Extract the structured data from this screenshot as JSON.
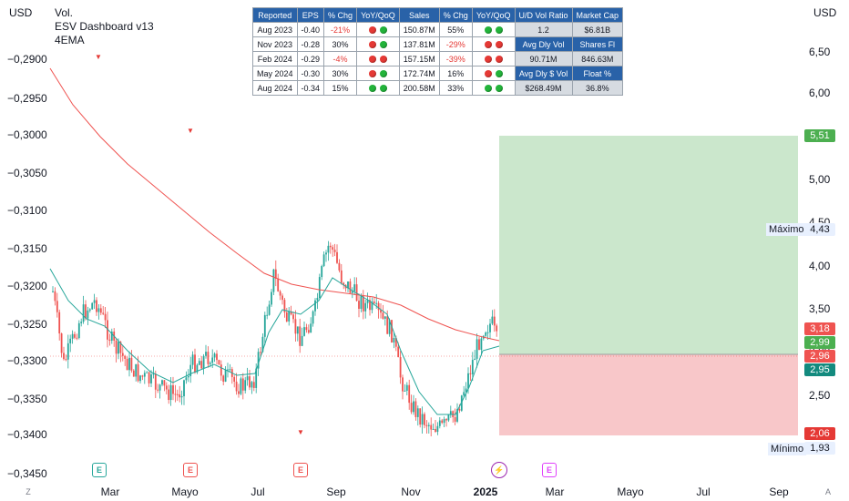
{
  "left_axis": {
    "currency": "USD",
    "ticks": [
      "−0,2900",
      "−0,2950",
      "−0,3000",
      "−0,3050",
      "−0,3100",
      "−0,3150",
      "−0,3200",
      "−0,3250",
      "−0,3300",
      "−0,3350",
      "−0,3400",
      "−0,3450"
    ]
  },
  "right_axis": {
    "currency": "USD",
    "ticks": [
      "6,50",
      "6,00",
      "5,00",
      "4,50",
      "4,00",
      "3,50",
      "3,00",
      "2,50"
    ]
  },
  "legend": {
    "line1": "Vol.",
    "line2": "ESV Dashboard v13",
    "line3": "4EMA"
  },
  "x_axis": {
    "ticks": [
      "Mar",
      "Mayo",
      "Jul",
      "Sep",
      "Nov",
      "2025",
      "Mar",
      "Mayo",
      "Jul",
      "Sep"
    ]
  },
  "price_badges": {
    "target": "5,51",
    "max_value": "4,43",
    "p318": "3,18",
    "p299": "2,99",
    "p296": "2,96",
    "p295": "2,95",
    "stop": "2,06",
    "min_value": "1,93"
  },
  "range_labels": {
    "max_label": "Máximo",
    "min_label": "Mínimo"
  },
  "colors": {
    "up": "#26a69a",
    "down": "#ef5350",
    "ema_slow": "#ef5350",
    "ema_fast": "#26a69a",
    "profit_zone": "#c8e6c9",
    "loss_zone": "#f8c4c6",
    "table_header": "#2962a8"
  },
  "fundamentals_table": {
    "headers": [
      "Reported",
      "EPS",
      "% Chg",
      "YoY/QoQ",
      "Sales",
      "% Chg",
      "YoY/QoQ"
    ],
    "rows": [
      {
        "reported": "Aug 2023",
        "eps": "-0.40",
        "eps_chg": "-21%",
        "eps_neg": true,
        "eps_dots": [
          "red",
          "green"
        ],
        "sales": "150.87M",
        "sales_chg": "55%",
        "sales_neg": false,
        "sales_dots": [
          "green",
          "green"
        ]
      },
      {
        "reported": "Nov 2023",
        "eps": "-0.28",
        "eps_chg": "30%",
        "eps_neg": false,
        "eps_dots": [
          "red",
          "green"
        ],
        "sales": "137.81M",
        "sales_chg": "-29%",
        "sales_neg": true,
        "sales_dots": [
          "red",
          "red"
        ]
      },
      {
        "reported": "Feb 2024",
        "eps": "-0.29",
        "eps_chg": "-4%",
        "eps_neg": true,
        "eps_dots": [
          "red",
          "red"
        ],
        "sales": "157.15M",
        "sales_chg": "-39%",
        "sales_neg": true,
        "sales_dots": [
          "red",
          "red"
        ]
      },
      {
        "reported": "May 2024",
        "eps": "-0.30",
        "eps_chg": "30%",
        "eps_neg": false,
        "eps_dots": [
          "red",
          "green"
        ],
        "sales": "172.74M",
        "sales_chg": "16%",
        "sales_neg": false,
        "sales_dots": [
          "red",
          "green"
        ]
      },
      {
        "reported": "Aug 2024",
        "eps": "-0.34",
        "eps_chg": "15%",
        "eps_neg": false,
        "eps_dots": [
          "green",
          "green"
        ],
        "sales": "200.58M",
        "sales_chg": "33%",
        "sales_neg": false,
        "sales_dots": [
          "green",
          "green"
        ]
      }
    ],
    "side": [
      {
        "label": "U/D Vol Ratio",
        "value": "1.2"
      },
      {
        "label": "Market Cap",
        "value": "$6.81B"
      },
      {
        "label": "Avg Dly Vol",
        "value": "90.71M"
      },
      {
        "label": "Shares Fl",
        "value": "846.63M"
      },
      {
        "label": "Avg Dly $ Vol",
        "value": "$268.49M"
      },
      {
        "label": "Float %",
        "value": "36.8%"
      }
    ]
  },
  "events": {
    "earnings_letter": "E",
    "split_letter": "⚡"
  },
  "corner": {
    "left": "Z",
    "right": "A"
  }
}
